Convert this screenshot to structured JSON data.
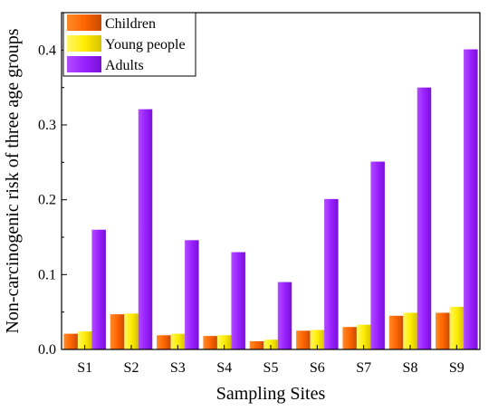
{
  "chart_data": {
    "type": "bar",
    "xlabel": "Sampling Sites",
    "ylabel": "Non-carcinogenic risk of three age groups",
    "categories": [
      "S1",
      "S2",
      "S3",
      "S4",
      "S5",
      "S6",
      "S7",
      "S8",
      "S9"
    ],
    "ylim": [
      0,
      0.45
    ],
    "yticks": [
      "0.0",
      "0.1",
      "0.2",
      "0.3",
      "0.4"
    ],
    "legend_position": "top-left",
    "grid": false,
    "series": [
      {
        "name": "Children",
        "color": "#ff6600",
        "values": [
          0.021,
          0.047,
          0.019,
          0.018,
          0.011,
          0.025,
          0.03,
          0.045,
          0.049
        ]
      },
      {
        "name": "Young people",
        "color": "#ffee00",
        "values": [
          0.024,
          0.048,
          0.021,
          0.019,
          0.013,
          0.026,
          0.033,
          0.049,
          0.057
        ]
      },
      {
        "name": "Adults",
        "color": "#9922ff",
        "values": [
          0.16,
          0.321,
          0.146,
          0.13,
          0.09,
          0.201,
          0.251,
          0.35,
          0.401
        ]
      }
    ]
  }
}
